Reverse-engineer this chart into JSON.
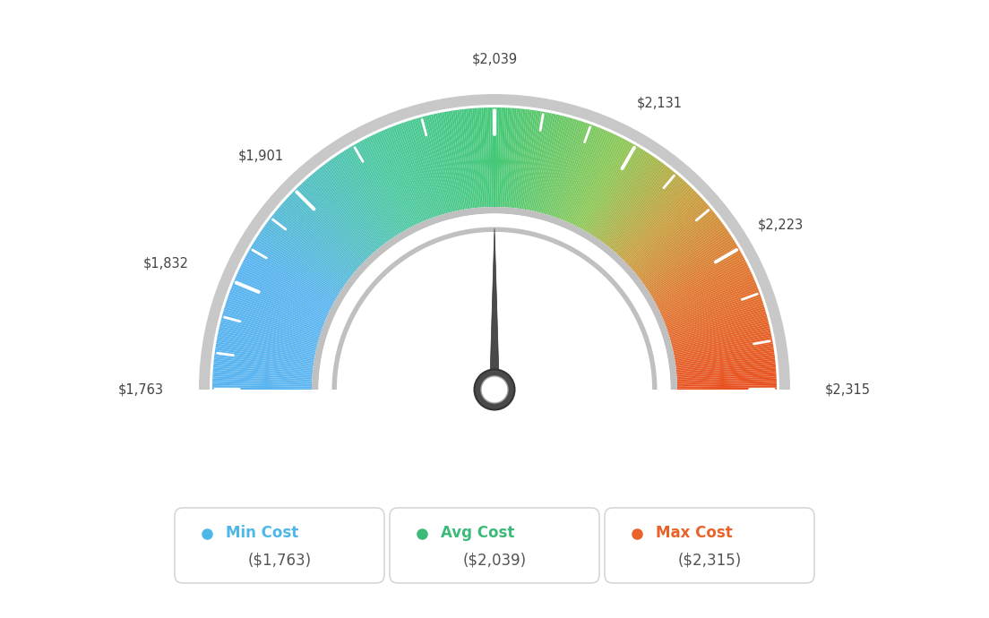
{
  "min_val": 1763,
  "max_val": 2315,
  "avg_val": 2039,
  "tick_labels": [
    "$1,763",
    "$1,832",
    "$1,901",
    "$2,039",
    "$2,131",
    "$2,223",
    "$2,315"
  ],
  "tick_values": [
    1763,
    1832,
    1901,
    2039,
    2131,
    2223,
    2315
  ],
  "legend": [
    {
      "label": "Min Cost",
      "value": "($1,763)",
      "color": "#4db8e8"
    },
    {
      "label": "Avg Cost",
      "value": "($2,039)",
      "color": "#3dba7a"
    },
    {
      "label": "Max Cost",
      "value": "($2,315)",
      "color": "#e8622a"
    }
  ],
  "bg_color": "#ffffff",
  "needle_value": 2039,
  "color_stops": [
    [
      0.0,
      "#5ab4f0"
    ],
    [
      0.15,
      "#5ab4f0"
    ],
    [
      0.35,
      "#4dc8a0"
    ],
    [
      0.5,
      "#45c878"
    ],
    [
      0.65,
      "#8cc858"
    ],
    [
      0.75,
      "#c8a040"
    ],
    [
      0.85,
      "#e07830"
    ],
    [
      1.0,
      "#e85020"
    ]
  ]
}
